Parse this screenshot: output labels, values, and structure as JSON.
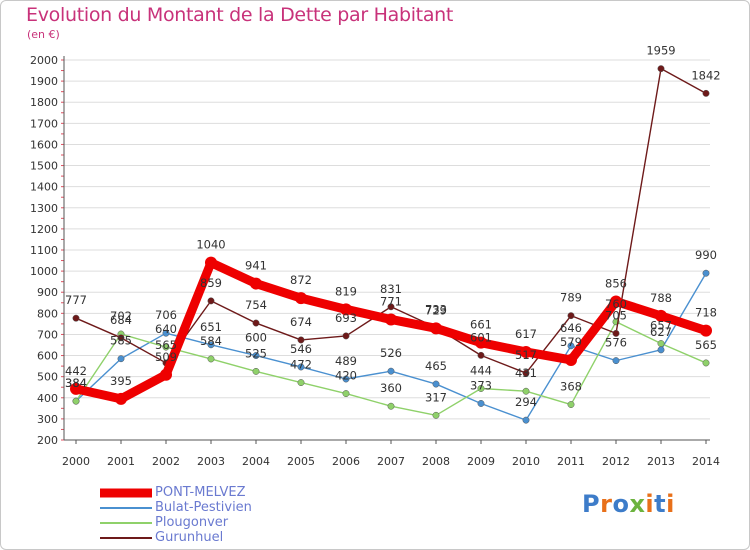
{
  "colors": {
    "title": "#c8327a",
    "legend_text": "#6a7ad0",
    "grid": "#dddddd",
    "axis": "#555555"
  },
  "logo": {
    "letters": [
      "P",
      "r",
      "o",
      "x",
      "i",
      "t",
      "i"
    ],
    "colors": [
      "#3d7cc9",
      "#e8701a",
      "#3d7cc9",
      "#6cb33e",
      "#e8701a",
      "#3d7cc9",
      "#e8701a"
    ]
  },
  "chart_data": {
    "type": "line",
    "title": "Evolution du Montant de la Dette par Habitant",
    "subtitle": "(en €)",
    "xlabel": "",
    "ylabel": "",
    "ylim": [
      200,
      2000
    ],
    "yticks": [
      200,
      300,
      400,
      500,
      600,
      700,
      800,
      900,
      1000,
      1100,
      1200,
      1300,
      1400,
      1500,
      1600,
      1700,
      1800,
      1900,
      2000
    ],
    "grid": true,
    "legend_position": "bottom-left",
    "categories": [
      "2000",
      "2001",
      "2002",
      "2003",
      "2004",
      "2005",
      "2006",
      "2007",
      "2008",
      "2009",
      "2010",
      "2011",
      "2012",
      "2013",
      "2014"
    ],
    "series": [
      {
        "name": "PONT-MELVEZ",
        "color": "#ee0000",
        "emphasis": true,
        "values": [
          442,
          395,
          509,
          1040,
          941,
          872,
          819,
          771,
          729,
          661,
          617,
          579,
          856,
          788,
          718
        ],
        "labels": [
          "442",
          "395",
          "509",
          "1040",
          "941",
          "872",
          "819",
          "771",
          "729",
          "661",
          "617",
          "579",
          "856",
          "788",
          "718"
        ]
      },
      {
        "name": "Bulat-Pestivien",
        "color": "#4a90d0",
        "values": [
          384,
          585,
          706,
          651,
          600,
          546,
          489,
          526,
          465,
          373,
          294,
          646,
          576,
          627,
          990
        ],
        "labels": [
          "384",
          "585",
          "706",
          "651",
          "600",
          "546",
          "489",
          "526",
          "465",
          "373",
          "294",
          "646",
          "576",
          "627",
          "990"
        ]
      },
      {
        "name": "Plougonver",
        "color": "#8fd16a",
        "values": [
          384,
          702,
          640,
          584,
          525,
          472,
          420,
          360,
          317,
          444,
          431,
          368,
          760,
          657,
          565
        ],
        "labels": [
          "384",
          "702",
          "640",
          "584",
          "525",
          "472",
          "420",
          "360",
          "317",
          "444",
          "431",
          "368",
          "760",
          "657",
          "565"
        ]
      },
      {
        "name": "Gurunhuel",
        "color": "#6e1a1a",
        "values": [
          777,
          684,
          565,
          859,
          754,
          674,
          693,
          831,
          733,
          601,
          517,
          789,
          705,
          1959,
          1842
        ],
        "labels": [
          "777",
          "684",
          "565",
          "859",
          "754",
          "674",
          "693",
          "831",
          "733",
          "601",
          "517",
          "789",
          "705",
          "1959",
          "1842"
        ]
      }
    ]
  }
}
